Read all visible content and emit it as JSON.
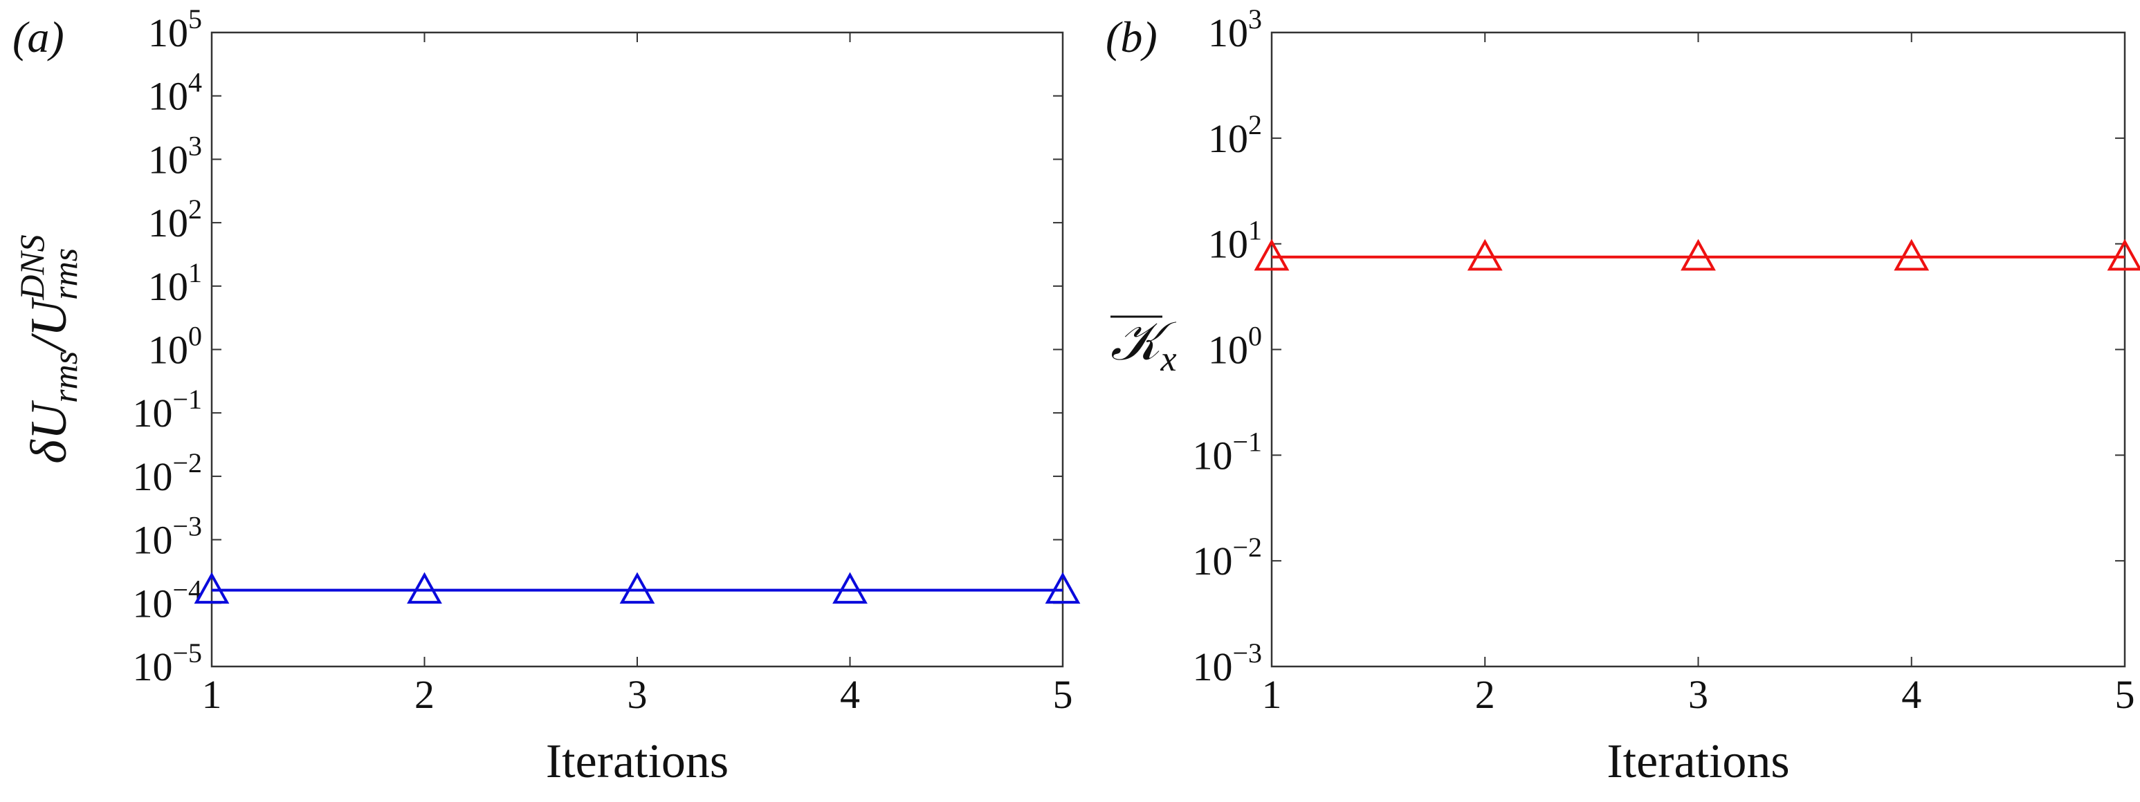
{
  "chart_data": [
    {
      "type": "line",
      "panel": "(a)",
      "ylabel": [
        "δU",
        "rms",
        "/U",
        "rms",
        "DNS"
      ],
      "xlabel": "Iterations",
      "x": [
        1,
        2,
        3,
        4,
        5
      ],
      "values": [
        0.00016,
        0.00016,
        0.00016,
        0.00016,
        0.00016
      ],
      "color": "#0a0adc",
      "marker": "triangle",
      "xlim": [
        1,
        5
      ],
      "xticks": [
        1,
        2,
        3,
        4,
        5
      ],
      "ylog": true,
      "ylim": [
        1e-05,
        100000
      ],
      "yticks": [
        {
          "value": 1e-05,
          "label": "10",
          "exponent": "−5"
        },
        {
          "value": 0.0001,
          "label": "10",
          "exponent": "−4"
        },
        {
          "value": 0.001,
          "label": "10",
          "exponent": "−3"
        },
        {
          "value": 0.01,
          "label": "10",
          "exponent": "−2"
        },
        {
          "value": 0.1,
          "label": "10",
          "exponent": "−1"
        },
        {
          "value": 1,
          "label": "10",
          "exponent": "0"
        },
        {
          "value": 10,
          "label": "10",
          "exponent": "1"
        },
        {
          "value": 100,
          "label": "10",
          "exponent": "2"
        },
        {
          "value": 1000,
          "label": "10",
          "exponent": "3"
        },
        {
          "value": 10000,
          "label": "10",
          "exponent": "4"
        },
        {
          "value": 100000,
          "label": "10",
          "exponent": "5"
        }
      ]
    },
    {
      "type": "line",
      "panel": "(b)",
      "ylabel": [
        "𝒦",
        "x"
      ],
      "xlabel": "Iterations",
      "x": [
        1,
        2,
        3,
        4,
        5
      ],
      "values": [
        7.5,
        7.5,
        7.5,
        7.5,
        7.5
      ],
      "color": "#ee1111",
      "marker": "triangle",
      "xlim": [
        1,
        5
      ],
      "xticks": [
        1,
        2,
        3,
        4,
        5
      ],
      "ylog": true,
      "ylim": [
        0.001,
        1000
      ],
      "yticks": [
        {
          "value": 0.001,
          "label": "10",
          "exponent": "−3"
        },
        {
          "value": 0.01,
          "label": "10",
          "exponent": "−2"
        },
        {
          "value": 0.1,
          "label": "10",
          "exponent": "−1"
        },
        {
          "value": 1,
          "label": "10",
          "exponent": "0"
        },
        {
          "value": 10,
          "label": "10",
          "exponent": "1"
        },
        {
          "value": 100,
          "label": "10",
          "exponent": "2"
        },
        {
          "value": 1000,
          "label": "10",
          "exponent": "3"
        }
      ]
    }
  ]
}
